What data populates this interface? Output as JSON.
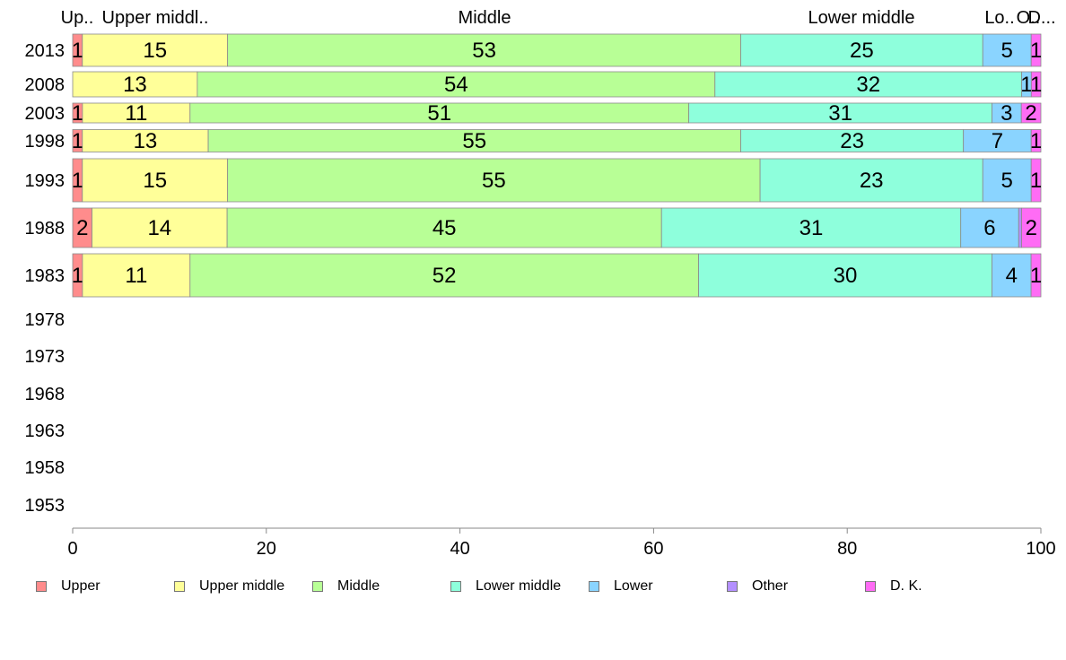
{
  "chart_data": {
    "type": "bar",
    "orientation": "horizontal",
    "stacked": true,
    "categories": [
      "2013",
      "2008",
      "2003",
      "1998",
      "1993",
      "1988",
      "1983",
      "1978",
      "1973",
      "1968",
      "1963",
      "1958",
      "1953"
    ],
    "series": [
      {
        "name": "Upper",
        "color": "#ff8c8c",
        "values": [
          1,
          0,
          1,
          1,
          1,
          2,
          1,
          null,
          null,
          null,
          null,
          null,
          null
        ]
      },
      {
        "name": "Upper middle",
        "color": "#ffff99",
        "values": [
          15,
          13,
          11,
          13,
          15,
          14,
          11,
          null,
          null,
          null,
          null,
          null,
          null
        ]
      },
      {
        "name": "Middle",
        "color": "#b8ff96",
        "values": [
          53,
          54,
          51,
          55,
          55,
          45,
          52,
          null,
          null,
          null,
          null,
          null,
          null
        ]
      },
      {
        "name": "Lower middle",
        "color": "#8effdc",
        "values": [
          25,
          32,
          31,
          23,
          23,
          31,
          30,
          null,
          null,
          null,
          null,
          null,
          null
        ]
      },
      {
        "name": "Lower",
        "color": "#8ad4ff",
        "values": [
          5,
          1,
          3,
          7,
          5,
          6,
          4,
          null,
          null,
          null,
          null,
          null,
          null
        ]
      },
      {
        "name": "Other",
        "color": "#b490ff",
        "values": [
          0,
          0,
          0,
          0,
          0,
          0.3,
          0,
          null,
          null,
          null,
          null,
          null,
          null
        ]
      },
      {
        "name": "D. K.",
        "color": "#ff6cf5",
        "values": [
          1,
          1,
          2,
          1,
          1,
          2,
          1,
          null,
          null,
          null,
          null,
          null,
          null
        ]
      }
    ],
    "column_headers": [
      "Up..",
      "Upper middl..",
      "Middle",
      "Lower middle",
      "Lo..",
      "O..",
      "D..."
    ],
    "xlim": [
      0,
      100
    ],
    "xticks": [
      0,
      20,
      40,
      60,
      80,
      100
    ],
    "legend_position": "bottom",
    "grid": false
  }
}
